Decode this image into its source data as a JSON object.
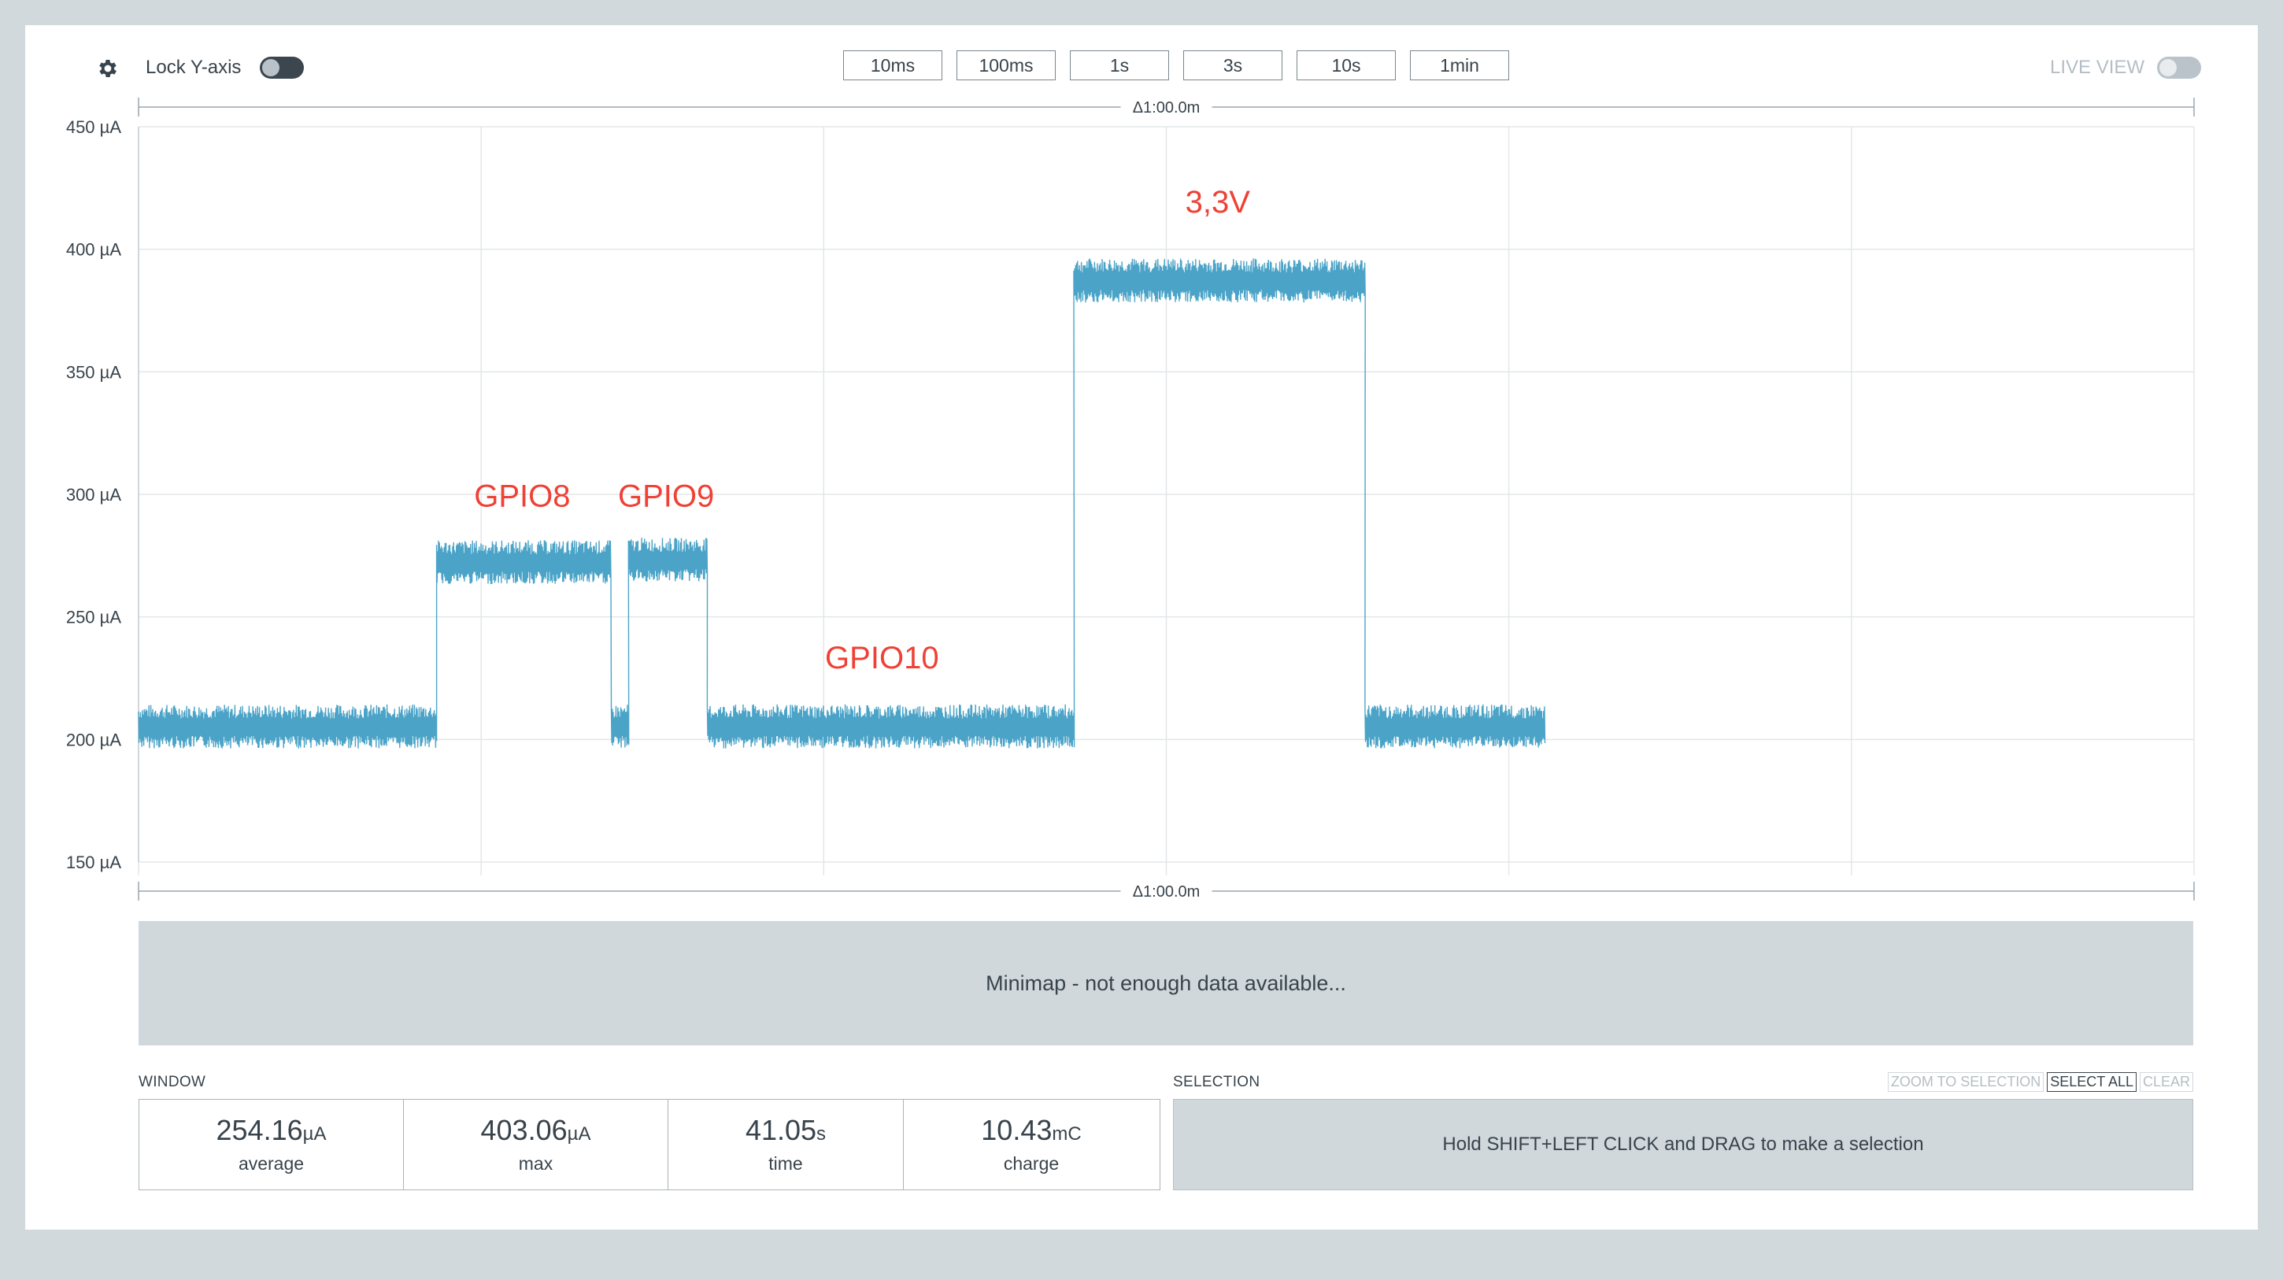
{
  "toolbar": {
    "lock_label": "Lock Y-axis",
    "live_label": "LIVE VIEW",
    "window_buttons": [
      "10ms",
      "100ms",
      "1s",
      "3s",
      "10s",
      "1min"
    ]
  },
  "chart_data": {
    "type": "line",
    "y_ticks": [
      "450 µA",
      "400 µA",
      "350 µA",
      "300 µA",
      "250 µA",
      "200 µA",
      "150 µA"
    ],
    "ylim": [
      150,
      450
    ],
    "xlim": [
      0,
      60
    ],
    "x_unit": "s",
    "delta_top": "Δ1:00.0m",
    "delta_bottom": "Δ1:00.0m",
    "grid": true,
    "color": "#4ba4c8",
    "segments": [
      {
        "x": [
          0.0,
          8.7
        ],
        "y": 205
      },
      {
        "x": [
          8.7,
          13.8
        ],
        "y": 272
      },
      {
        "x": [
          13.8,
          14.3
        ],
        "y": 205
      },
      {
        "x": [
          14.3,
          16.6
        ],
        "y": 273
      },
      {
        "x": [
          16.6,
          27.3
        ],
        "y": 205
      },
      {
        "x": [
          27.3,
          35.8
        ],
        "y": 387
      },
      {
        "x": [
          35.8,
          41.05
        ],
        "y": 205
      }
    ],
    "annotations": [
      {
        "text": "GPIO8",
        "x": 11.2,
        "y": 295
      },
      {
        "text": "GPIO9",
        "x": 15.4,
        "y": 295
      },
      {
        "text": "GPIO10",
        "x": 21.7,
        "y": 229
      },
      {
        "text": "3,3V",
        "x": 31.5,
        "y": 415
      }
    ]
  },
  "minimap": {
    "text": "Minimap - not enough data available..."
  },
  "window": {
    "label": "WINDOW",
    "stats": [
      {
        "value": "254.16",
        "unit": "µA",
        "caption": "average"
      },
      {
        "value": "403.06",
        "unit": "µA",
        "caption": "max"
      },
      {
        "value": "41.05",
        "unit": "s",
        "caption": "time"
      },
      {
        "value": "10.43",
        "unit": "mC",
        "caption": "charge"
      }
    ]
  },
  "selection": {
    "label": "SELECTION",
    "zoom_label": "ZOOM TO SELECTION",
    "select_all_label": "SELECT ALL",
    "clear_label": "CLEAR",
    "hint": "Hold SHIFT+LEFT CLICK and DRAG to make a selection"
  }
}
